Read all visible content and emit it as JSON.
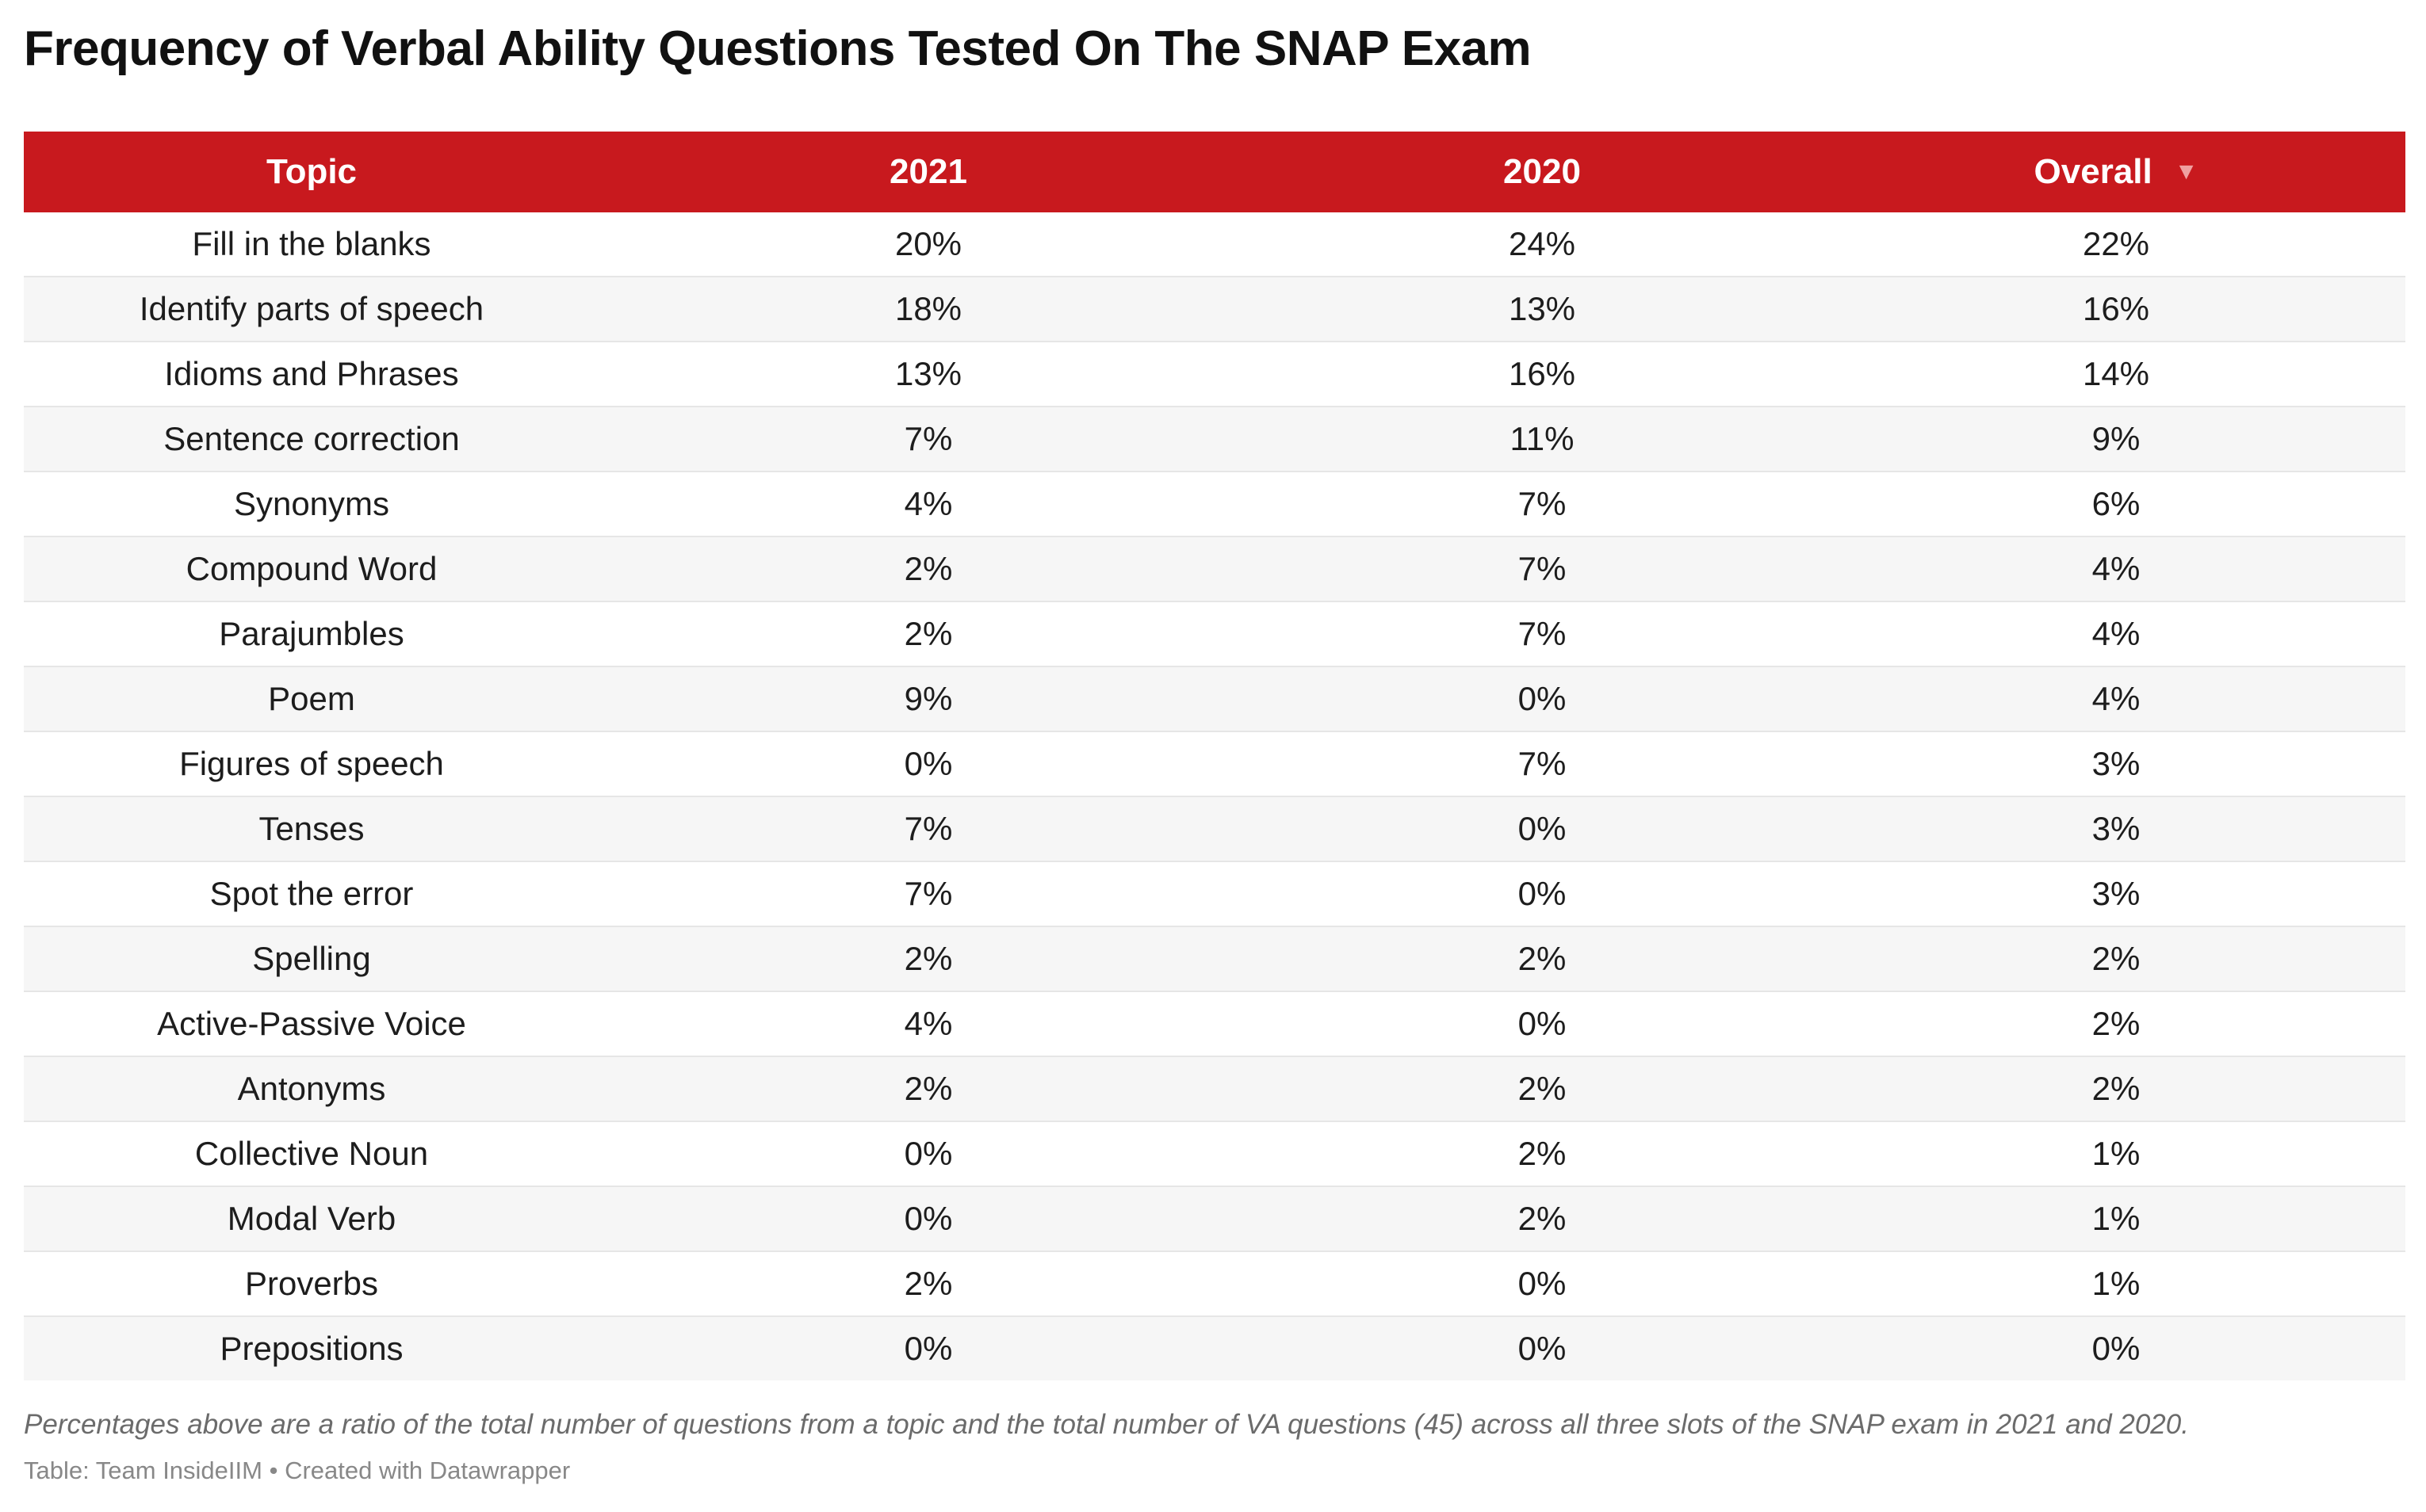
{
  "title": "Frequency of Verbal Ability Questions Tested On The SNAP Exam",
  "notes": "Percentages above are a ratio of the total number of questions from a topic and the total number of VA questions (45) across all three slots of the SNAP exam in 2021 and 2020.",
  "footer": {
    "source_label": "Table: Team InsideIIM",
    "separator": "•",
    "credit": "Created with Datawrapper"
  },
  "colors": {
    "header_background": "#c8191e",
    "header_text": "#ffffff",
    "stripe": "#f6f6f6"
  },
  "chart_data": {
    "type": "table",
    "columns": [
      "Topic",
      "2021",
      "2020",
      "Overall"
    ],
    "sort": {
      "column": "Overall",
      "direction": "descending",
      "icon": "sort-descending-icon",
      "glyph": "▼"
    },
    "rows": [
      {
        "topic": "Fill in the blanks",
        "y2021": "20%",
        "y2020": "24%",
        "overall": "22%"
      },
      {
        "topic": "Identify parts of speech",
        "y2021": "18%",
        "y2020": "13%",
        "overall": "16%"
      },
      {
        "topic": "Idioms and Phrases",
        "y2021": "13%",
        "y2020": "16%",
        "overall": "14%"
      },
      {
        "topic": "Sentence correction",
        "y2021": "7%",
        "y2020": "11%",
        "overall": "9%"
      },
      {
        "topic": "Synonyms",
        "y2021": "4%",
        "y2020": "7%",
        "overall": "6%"
      },
      {
        "topic": "Compound Word",
        "y2021": "2%",
        "y2020": "7%",
        "overall": "4%"
      },
      {
        "topic": "Parajumbles",
        "y2021": "2%",
        "y2020": "7%",
        "overall": "4%"
      },
      {
        "topic": "Poem",
        "y2021": "9%",
        "y2020": "0%",
        "overall": "4%"
      },
      {
        "topic": "Figures of speech",
        "y2021": "0%",
        "y2020": "7%",
        "overall": "3%"
      },
      {
        "topic": "Tenses",
        "y2021": "7%",
        "y2020": "0%",
        "overall": "3%"
      },
      {
        "topic": "Spot the error",
        "y2021": "7%",
        "y2020": "0%",
        "overall": "3%"
      },
      {
        "topic": "Spelling",
        "y2021": "2%",
        "y2020": "2%",
        "overall": "2%"
      },
      {
        "topic": "Active-Passive Voice",
        "y2021": "4%",
        "y2020": "0%",
        "overall": "2%"
      },
      {
        "topic": "Antonyms",
        "y2021": "2%",
        "y2020": "2%",
        "overall": "2%"
      },
      {
        "topic": "Collective Noun",
        "y2021": "0%",
        "y2020": "2%",
        "overall": "1%"
      },
      {
        "topic": "Modal Verb",
        "y2021": "0%",
        "y2020": "2%",
        "overall": "1%"
      },
      {
        "topic": "Proverbs",
        "y2021": "2%",
        "y2020": "0%",
        "overall": "1%"
      },
      {
        "topic": "Prepositions",
        "y2021": "0%",
        "y2020": "0%",
        "overall": "0%"
      }
    ]
  }
}
